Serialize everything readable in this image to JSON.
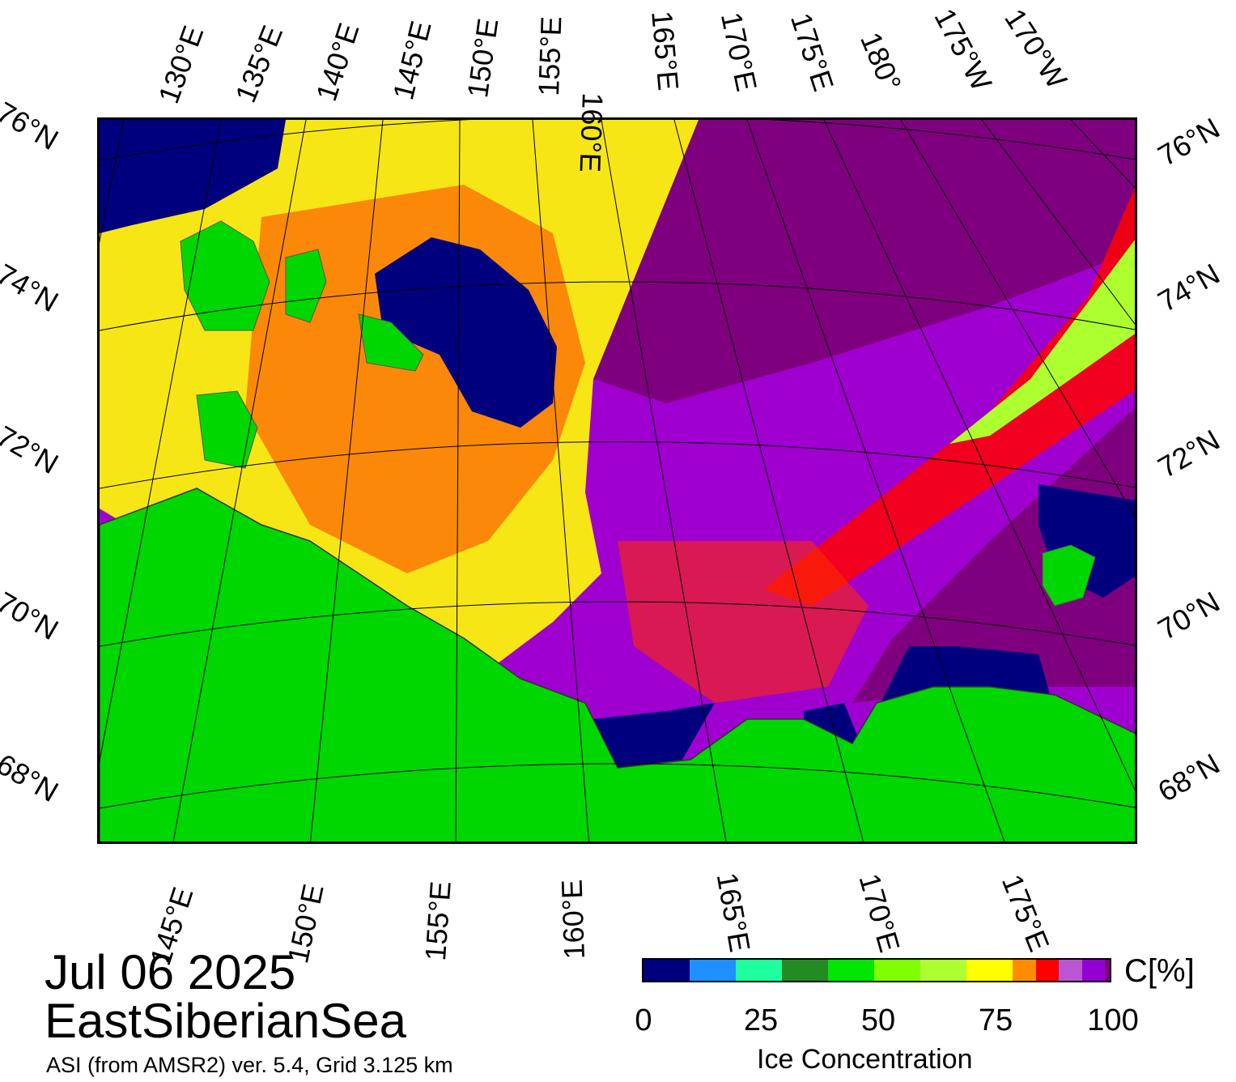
{
  "map": {
    "title_date": "Jul 06 2025",
    "title_region": "EastSiberianSea",
    "source": "ASI (from AMSR2) ver. 5.4,  Grid 3.125 km",
    "top_lon_labels": [
      "130°E",
      "135°E",
      "140°E",
      "145°E",
      "150°E",
      "155°E",
      "160°E",
      "165°E",
      "170°E",
      "175°E",
      "180°",
      "175°W",
      "170°W"
    ],
    "bottom_lon_labels": [
      "145°E",
      "150°E",
      "155°E",
      "160°E",
      "165°E",
      "170°E",
      "175°E"
    ],
    "left_lat_labels": [
      "76°N",
      "74°N",
      "72°N",
      "70°N",
      "68°N"
    ],
    "right_lat_labels": [
      "76°N",
      "74°N",
      "72°N",
      "70°N",
      "68°N"
    ],
    "colors": {
      "ocean_open": "#00007f",
      "land": "#00d700",
      "ice_full": "#7f007f",
      "ice_high": "#9f00cf",
      "ice_mid": "#ff0000",
      "ice_yellow": "#ffff00"
    }
  },
  "colorbar": {
    "title": "Ice Concentration",
    "unit": "C[%]",
    "tick_labels": [
      "0",
      "25",
      "50",
      "75",
      "100"
    ],
    "colors": [
      "#00007f",
      "#1e90ff",
      "#1eff9f",
      "#228b22",
      "#00e600",
      "#7fff00",
      "#adff2f",
      "#ffff00",
      "#ff8c00",
      "#ff0000",
      "#ba55d3",
      "#9400d3",
      "#7f007f"
    ]
  }
}
